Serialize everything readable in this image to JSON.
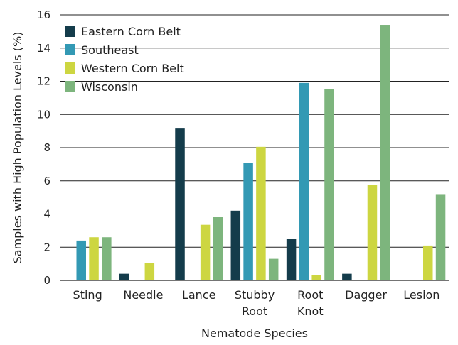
{
  "chart_data": {
    "type": "bar",
    "title": "",
    "xlabel": "Nematode Species",
    "ylabel": "Samples with High Population Levels (%)",
    "ylim": [
      0,
      16
    ],
    "yticks": [
      0,
      2,
      4,
      6,
      8,
      10,
      12,
      14,
      16
    ],
    "grid": true,
    "legend_position": "top-left",
    "categories": [
      [
        "Sting"
      ],
      [
        "Needle"
      ],
      [
        "Lance"
      ],
      [
        "Stubby",
        "Root"
      ],
      [
        "Root",
        "Knot"
      ],
      [
        "Dagger"
      ],
      [
        "Lesion"
      ]
    ],
    "series": [
      {
        "name": "Eastern Corn Belt",
        "color": "#143c4b",
        "values": [
          0,
          0.4,
          9.15,
          4.2,
          2.5,
          0.4,
          0
        ]
      },
      {
        "name": "Southeast",
        "color": "#3399b4",
        "values": [
          2.4,
          0,
          0,
          7.1,
          11.9,
          0,
          0
        ]
      },
      {
        "name": "Western Corn Belt",
        "color": "#cdd641",
        "values": [
          2.6,
          1.05,
          3.35,
          8.05,
          0.3,
          5.75,
          2.1
        ]
      },
      {
        "name": "Wisconsin",
        "color": "#7db57d",
        "values": [
          2.6,
          0,
          3.85,
          1.3,
          11.55,
          15.4,
          5.2
        ]
      }
    ]
  }
}
